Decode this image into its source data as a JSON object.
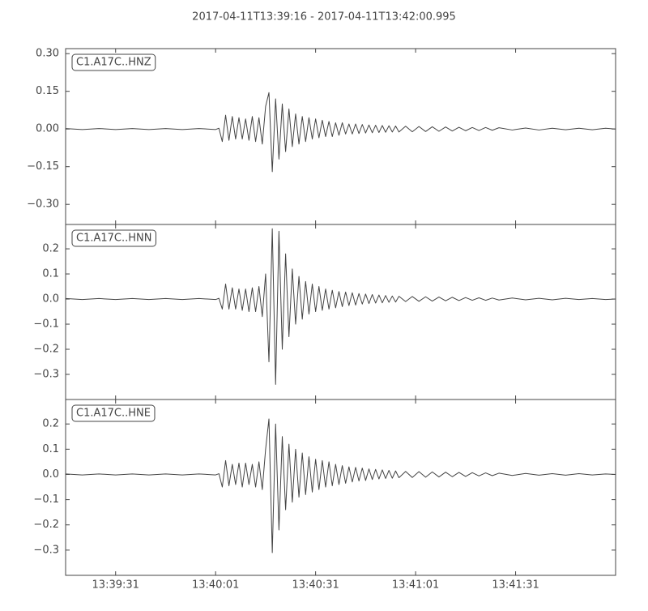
{
  "title": "2017-04-11T13:39:16  -  2017-04-11T13:42:00.995",
  "chart_data": [
    {
      "type": "line",
      "label": "C1.A17C..HNZ",
      "color": "#444444",
      "xlim": [
        0,
        164.995
      ],
      "ylim": [
        -0.38,
        0.32
      ],
      "yticks": [
        {
          "value": -0.3,
          "label": "−0.30"
        },
        {
          "value": -0.15,
          "label": "−0.15"
        },
        {
          "value": 0,
          "label": "0.00"
        },
        0.15,
        {
          "value": 0.3,
          "label": "0.30"
        }
      ],
      "x": [
        0,
        5,
        10,
        15,
        20,
        25,
        30,
        35,
        40,
        45,
        46,
        47,
        48,
        49,
        50,
        51,
        52,
        53,
        54,
        55,
        56,
        57,
        58,
        59,
        60,
        61,
        62,
        63,
        64,
        65,
        66,
        67,
        68,
        69,
        70,
        71,
        72,
        73,
        74,
        75,
        76,
        77,
        78,
        79,
        80,
        81,
        82,
        83,
        84,
        85,
        86,
        87,
        88,
        89,
        90,
        91,
        92,
        93,
        94,
        95,
        96,
        97,
        98,
        99,
        100,
        102,
        104,
        106,
        108,
        110,
        112,
        114,
        116,
        118,
        120,
        122,
        124,
        126,
        128,
        130,
        134,
        138,
        142,
        146,
        150,
        154,
        158,
        162,
        164.995
      ],
      "values": [
        0.002,
        -0.002,
        0.002,
        -0.002,
        0.002,
        -0.002,
        0.002,
        -0.002,
        0.002,
        -0.002,
        0.003,
        -0.05,
        0.055,
        -0.045,
        0.05,
        -0.04,
        0.045,
        -0.04,
        0.04,
        -0.045,
        0.05,
        -0.05,
        0.045,
        -0.06,
        0.09,
        0.145,
        -0.17,
        0.12,
        -0.12,
        0.1,
        -0.09,
        0.08,
        -0.07,
        0.06,
        -0.06,
        0.05,
        -0.05,
        0.045,
        -0.04,
        0.04,
        -0.035,
        0.035,
        -0.03,
        0.03,
        -0.03,
        0.025,
        -0.025,
        0.025,
        -0.02,
        0.02,
        -0.02,
        0.02,
        -0.018,
        0.018,
        -0.016,
        0.016,
        -0.015,
        0.015,
        -0.014,
        0.014,
        -0.013,
        0.013,
        -0.012,
        0.012,
        -0.012,
        0.011,
        -0.011,
        0.01,
        -0.01,
        0.009,
        -0.009,
        0.008,
        -0.008,
        0.007,
        -0.007,
        0.006,
        -0.006,
        0.006,
        -0.005,
        0.005,
        -0.004,
        0.004,
        -0.004,
        0.003,
        -0.003,
        0.003,
        -0.003,
        0.003,
        0
      ]
    },
    {
      "type": "line",
      "label": "C1.A17C..HNN",
      "color": "#444444",
      "xlim": [
        0,
        164.995
      ],
      "ylim": [
        -0.4,
        0.297
      ],
      "yticks": [
        {
          "value": -0.3,
          "label": "−0.3"
        },
        {
          "value": -0.2,
          "label": "−0.2"
        },
        {
          "value": -0.1,
          "label": "−0.1"
        },
        {
          "value": 0,
          "label": "0.0"
        },
        0.1,
        0.2
      ],
      "x": [
        0,
        5,
        10,
        15,
        20,
        25,
        30,
        35,
        40,
        45,
        46,
        47,
        48,
        49,
        50,
        51,
        52,
        53,
        54,
        55,
        56,
        57,
        58,
        59,
        60,
        61,
        62,
        63,
        64,
        65,
        66,
        67,
        68,
        69,
        70,
        71,
        72,
        73,
        74,
        75,
        76,
        77,
        78,
        79,
        80,
        81,
        82,
        83,
        84,
        85,
        86,
        87,
        88,
        89,
        90,
        91,
        92,
        93,
        94,
        95,
        96,
        97,
        98,
        99,
        100,
        102,
        104,
        106,
        108,
        110,
        112,
        114,
        116,
        118,
        120,
        122,
        124,
        126,
        128,
        130,
        134,
        138,
        142,
        146,
        150,
        154,
        158,
        162,
        164.995
      ],
      "values": [
        0.002,
        -0.002,
        0.002,
        -0.002,
        0.002,
        -0.002,
        0.002,
        -0.002,
        0.002,
        -0.002,
        0.003,
        -0.04,
        0.06,
        -0.04,
        0.045,
        -0.04,
        0.04,
        -0.045,
        0.04,
        -0.05,
        0.045,
        -0.05,
        0.05,
        -0.07,
        0.1,
        -0.25,
        0.28,
        -0.34,
        0.27,
        -0.2,
        0.18,
        -0.15,
        0.12,
        -0.1,
        0.09,
        -0.08,
        0.07,
        -0.06,
        0.06,
        -0.05,
        0.05,
        -0.045,
        0.04,
        -0.04,
        0.035,
        -0.035,
        0.03,
        -0.03,
        0.028,
        -0.026,
        0.025,
        -0.024,
        0.022,
        -0.02,
        0.02,
        -0.018,
        0.018,
        -0.016,
        0.016,
        -0.015,
        0.014,
        -0.013,
        0.012,
        -0.012,
        0.011,
        -0.01,
        0.01,
        -0.009,
        0.009,
        -0.008,
        0.008,
        -0.007,
        0.007,
        -0.006,
        0.006,
        -0.005,
        0.005,
        -0.005,
        0.004,
        -0.004,
        0.004,
        -0.003,
        0.003,
        -0.003,
        0.003,
        -0.002,
        0.002,
        -0.002,
        0
      ]
    },
    {
      "type": "line",
      "label": "C1.A17C..HNE",
      "color": "#444444",
      "xlim": [
        0,
        164.995
      ],
      "ylim": [
        -0.4,
        0.297
      ],
      "yticks": [
        {
          "value": -0.3,
          "label": "−0.3"
        },
        {
          "value": -0.2,
          "label": "−0.2"
        },
        {
          "value": -0.1,
          "label": "−0.1"
        },
        {
          "value": 0,
          "label": "0.0"
        },
        0.1,
        0.2
      ],
      "xticks": [
        {
          "value": 15,
          "label": "13:39:31"
        },
        {
          "value": 45,
          "label": "13:40:01"
        },
        {
          "value": 75,
          "label": "13:40:31"
        },
        {
          "value": 105,
          "label": "13:41:01"
        },
        {
          "value": 135,
          "label": "13:41:31"
        }
      ],
      "x": [
        0,
        5,
        10,
        15,
        20,
        25,
        30,
        35,
        40,
        45,
        46,
        47,
        48,
        49,
        50,
        51,
        52,
        53,
        54,
        55,
        56,
        57,
        58,
        59,
        60,
        61,
        62,
        63,
        64,
        65,
        66,
        67,
        68,
        69,
        70,
        71,
        72,
        73,
        74,
        75,
        76,
        77,
        78,
        79,
        80,
        81,
        82,
        83,
        84,
        85,
        86,
        87,
        88,
        89,
        90,
        91,
        92,
        93,
        94,
        95,
        96,
        97,
        98,
        99,
        100,
        102,
        104,
        106,
        108,
        110,
        112,
        114,
        116,
        118,
        120,
        122,
        124,
        126,
        128,
        130,
        134,
        138,
        142,
        146,
        150,
        154,
        158,
        162,
        164.995
      ],
      "values": [
        0.002,
        -0.002,
        0.002,
        -0.002,
        0.002,
        -0.002,
        0.002,
        -0.002,
        0.002,
        -0.002,
        0.003,
        -0.05,
        0.055,
        -0.045,
        0.04,
        -0.04,
        0.045,
        -0.05,
        0.045,
        -0.04,
        0.04,
        -0.05,
        0.05,
        -0.06,
        0.1,
        0.22,
        -0.31,
        0.2,
        -0.22,
        0.15,
        -0.14,
        0.12,
        -0.11,
        0.1,
        -0.09,
        0.085,
        -0.08,
        0.07,
        -0.07,
        0.06,
        -0.06,
        0.055,
        -0.05,
        0.05,
        -0.045,
        0.04,
        -0.04,
        0.035,
        -0.035,
        0.03,
        -0.03,
        0.028,
        -0.026,
        0.025,
        -0.024,
        0.022,
        -0.02,
        0.02,
        -0.018,
        0.018,
        -0.016,
        0.016,
        -0.015,
        0.014,
        -0.013,
        0.012,
        -0.012,
        0.011,
        -0.011,
        0.01,
        -0.01,
        0.009,
        -0.009,
        0.008,
        -0.008,
        0.007,
        -0.006,
        0.006,
        -0.005,
        0.005,
        -0.004,
        0.004,
        -0.003,
        0.003,
        -0.003,
        0.003,
        -0.002,
        0.002,
        0
      ]
    }
  ]
}
